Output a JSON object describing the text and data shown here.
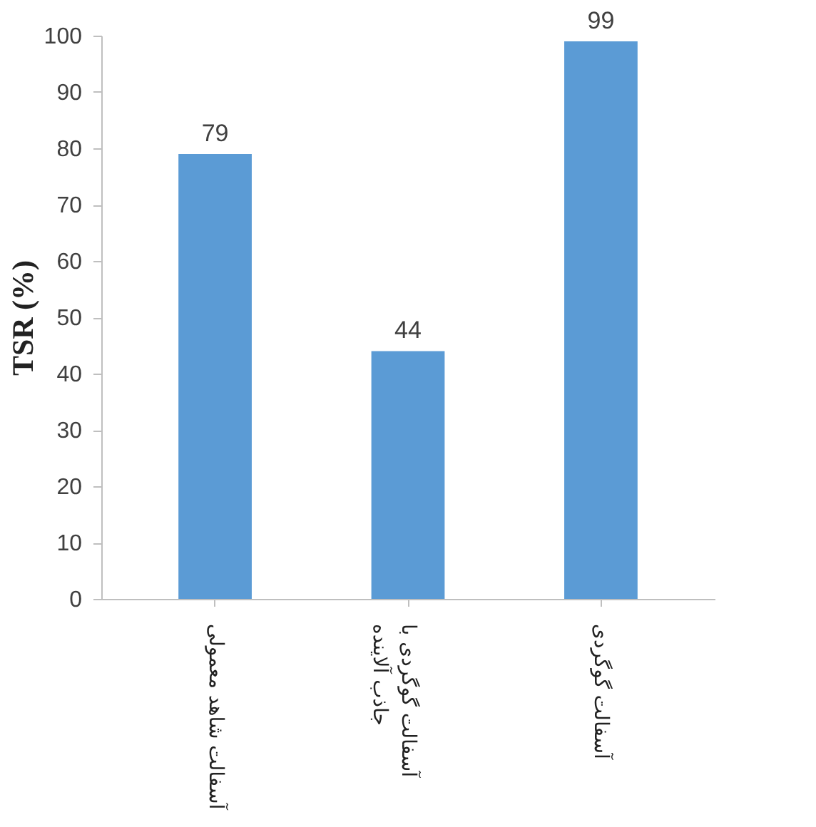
{
  "chart_data": {
    "type": "bar",
    "categories": [
      "آسفالت شاهد معمولی",
      "آسفالت گوگردی با جاذب آلاینده",
      "آسفالت گوگردی"
    ],
    "values": [
      79,
      44,
      99
    ],
    "color": "#5b9bd5",
    "ylabel": "TSR (%)",
    "ylim": [
      0,
      100
    ],
    "yticks": [
      0,
      10,
      20,
      30,
      40,
      50,
      60,
      70,
      80,
      90,
      100
    ],
    "grid": false,
    "data_labels": true
  }
}
